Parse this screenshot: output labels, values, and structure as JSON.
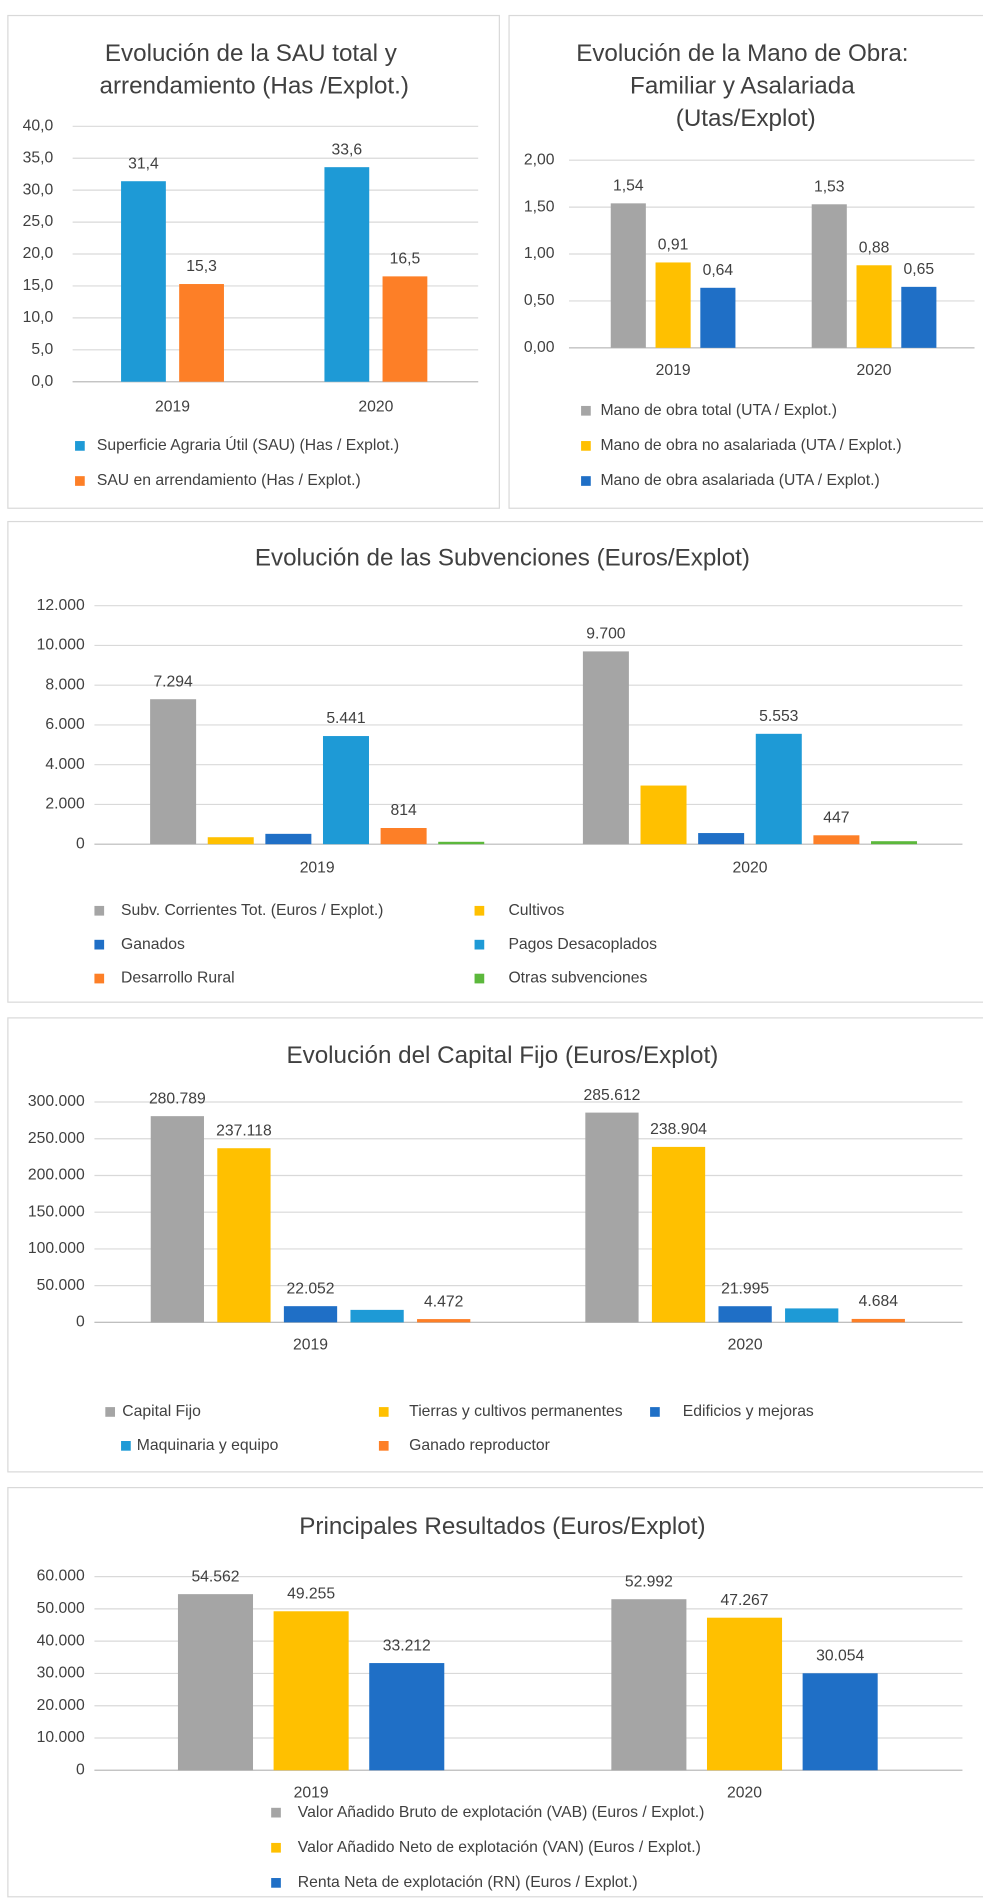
{
  "chart_data": [
    {
      "type": "bar",
      "title": "Evolución de la SAU total y arrendamiento (Has /Explot.)",
      "categories": [
        "2019",
        "2020"
      ],
      "series": [
        {
          "name": "Superficie Agraria Útil (SAU) (Has / Explot.)",
          "color": "#1e9ad6",
          "values": [
            31.4,
            33.6
          ],
          "value_labels": [
            "31,4",
            "33,6"
          ]
        },
        {
          "name": "SAU en arrendamiento (Has / Explot.)",
          "color": "#fd7f27",
          "values": [
            15.3,
            16.5
          ],
          "value_labels": [
            "15,3",
            "16,5"
          ]
        }
      ],
      "ylim": [
        0,
        40
      ],
      "yticks": [
        {
          "value": 0,
          "label": "0,0"
        },
        {
          "value": 5,
          "label": "5,0"
        },
        {
          "value": 10,
          "label": "10,0"
        },
        {
          "value": 15,
          "label": "15,0"
        },
        {
          "value": 20,
          "label": "20,0"
        },
        {
          "value": 25,
          "label": "25,0"
        },
        {
          "value": 30,
          "label": "30,0"
        },
        {
          "value": 35,
          "label": "35,0"
        },
        {
          "value": 40,
          "label": "40,0"
        }
      ],
      "grid": true
    },
    {
      "type": "bar",
      "title": "Evolución de la Mano de Obra: Familiar y Asalariada (Utas/Explot)",
      "categories": [
        "2019",
        "2020"
      ],
      "series": [
        {
          "name": "Mano de obra total (UTA / Explot.)",
          "color": "#a5a5a5",
          "values": [
            1.54,
            1.53
          ],
          "value_labels": [
            "1,54",
            "1,53"
          ]
        },
        {
          "name": "Mano de obra no asalariada (UTA / Explot.)",
          "color": "#ffc000",
          "values": [
            0.91,
            0.88
          ],
          "value_labels": [
            "0,91",
            "0,88"
          ]
        },
        {
          "name": "Mano de obra asalariada (UTA / Explot.)",
          "color": "#1f6fc6",
          "values": [
            0.64,
            0.65
          ],
          "value_labels": [
            "0,64",
            "0,65"
          ]
        }
      ],
      "ylim": [
        0,
        2
      ],
      "yticks": [
        {
          "value": 0,
          "label": "0,00"
        },
        {
          "value": 0.5,
          "label": "0,50"
        },
        {
          "value": 1,
          "label": "1,00"
        },
        {
          "value": 1.5,
          "label": "1,50"
        },
        {
          "value": 2,
          "label": "2,00"
        }
      ],
      "grid": true
    },
    {
      "type": "bar",
      "title": "Evolución de las Subvenciones (Euros/Explot)",
      "categories": [
        "2019",
        "2020"
      ],
      "series": [
        {
          "name": "Subv. Corrientes Tot.  (Euros / Explot.)",
          "color": "#a5a5a5",
          "values": [
            7294,
            9700
          ],
          "value_labels": [
            "7.294",
            "9.700"
          ]
        },
        {
          "name": "Cultivos",
          "color": "#ffc000",
          "values": [
            350,
            2950
          ],
          "value_labels": [
            null,
            null
          ]
        },
        {
          "name": "Ganados",
          "color": "#1f6fc6",
          "values": [
            520,
            560
          ],
          "value_labels": [
            null,
            null
          ]
        },
        {
          "name": "Pagos Desacoplados",
          "color": "#1e9ad6",
          "values": [
            5441,
            5553
          ],
          "value_labels": [
            "5.441",
            "5.553"
          ]
        },
        {
          "name": "Desarrollo Rural",
          "color": "#fd7f27",
          "values": [
            814,
            447
          ],
          "value_labels": [
            "814",
            "447"
          ]
        },
        {
          "name": "Otras subvenciones",
          "color": "#5cb83c",
          "values": [
            120,
            150
          ],
          "value_labels": [
            null,
            null
          ]
        }
      ],
      "ylim": [
        0,
        12000
      ],
      "yticks": [
        0,
        {
          "value": 2000,
          "label": "2.000"
        },
        {
          "value": 4000,
          "label": "4.000"
        },
        {
          "value": 6000,
          "label": "6.000"
        },
        {
          "value": 8000,
          "label": "8.000"
        },
        {
          "value": 10000,
          "label": "10.000"
        },
        {
          "value": 12000,
          "label": "12.000"
        }
      ],
      "grid": true
    },
    {
      "type": "bar",
      "title": "Evolución del Capital Fijo  (Euros/Explot)",
      "categories": [
        "2019",
        "2020"
      ],
      "series": [
        {
          "name": "Capital Fijo",
          "color": "#a5a5a5",
          "values": [
            280789,
            285612
          ],
          "value_labels": [
            "280.789",
            "285.612"
          ]
        },
        {
          "name": "Tierras y cultivos permanentes",
          "color": "#ffc000",
          "values": [
            237118,
            238904
          ],
          "value_labels": [
            "237.118",
            "238.904"
          ]
        },
        {
          "name": "Edificios y mejoras",
          "color": "#1f6fc6",
          "values": [
            22052,
            21995
          ],
          "value_labels": [
            "22.052",
            "21.995"
          ]
        },
        {
          "name": "Maquinaria y equipo",
          "color": "#1e9ad6",
          "values": [
            17000,
            19000
          ],
          "value_labels": [
            null,
            null
          ]
        },
        {
          "name": "Ganado reproductor",
          "color": "#fd7f27",
          "values": [
            4472,
            4684
          ],
          "value_labels": [
            "4.472",
            "4.684"
          ]
        }
      ],
      "ylim": [
        0,
        300000
      ],
      "yticks": [
        0,
        {
          "value": 50000,
          "label": "50.000"
        },
        {
          "value": 100000,
          "label": "100.000"
        },
        {
          "value": 150000,
          "label": "150.000"
        },
        {
          "value": 200000,
          "label": "200.000"
        },
        {
          "value": 250000,
          "label": "250.000"
        },
        {
          "value": 300000,
          "label": "300.000"
        }
      ],
      "grid": true
    },
    {
      "type": "bar",
      "title": "Principales Resultados  (Euros/Explot)",
      "categories": [
        "2019",
        "2020"
      ],
      "series": [
        {
          "name": "Valor Añadido Bruto de explotación (VAB)  (Euros / Explot.)",
          "color": "#a5a5a5",
          "values": [
            54562,
            52992
          ],
          "value_labels": [
            "54.562",
            "52.992"
          ]
        },
        {
          "name": "Valor Añadido Neto de explotación (VAN)  (Euros / Explot.)",
          "color": "#ffc000",
          "values": [
            49255,
            47267
          ],
          "value_labels": [
            "49.255",
            "47.267"
          ]
        },
        {
          "name": "Renta Neta de explotación (RN)  (Euros / Explot.)",
          "color": "#1f6fc6",
          "values": [
            33212,
            30054
          ],
          "value_labels": [
            "33.212",
            "30.054"
          ]
        }
      ],
      "ylim": [
        0,
        60000
      ],
      "yticks": [
        0,
        {
          "value": 10000,
          "label": "10.000"
        },
        {
          "value": 20000,
          "label": "20.000"
        },
        {
          "value": 30000,
          "label": "30.000"
        },
        {
          "value": 40000,
          "label": "40.000"
        },
        {
          "value": 50000,
          "label": "50.000"
        },
        {
          "value": 60000,
          "label": "60.000"
        }
      ],
      "grid": true
    }
  ]
}
